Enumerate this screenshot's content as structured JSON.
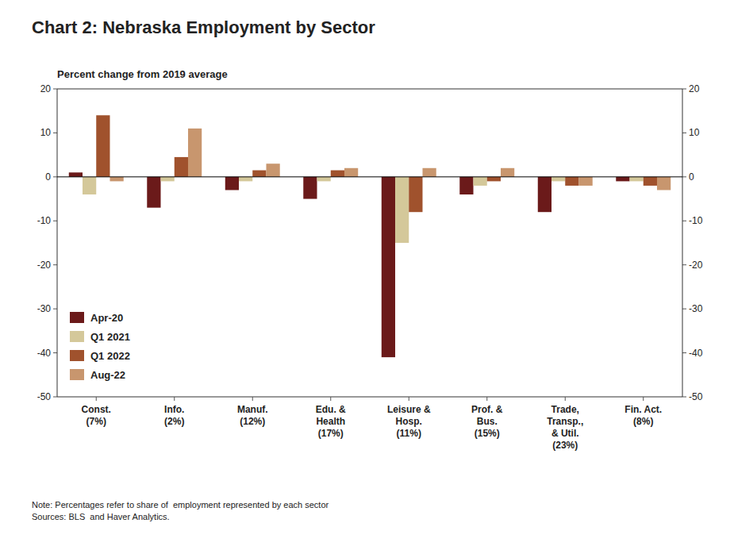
{
  "chart_data": {
    "type": "bar",
    "title": "Chart 2: Nebraska Employment by Sector",
    "ylabel": "Percent change from 2019 average",
    "note": "Note: Percentages refer to share of  employment represented by each sector\nSources: BLS  and Haver Analytics.",
    "categories": [
      "Const.\n(7%)",
      "Info.\n(2%)",
      "Manuf.\n(12%)",
      "Edu. &\nHealth\n(17%)",
      "Leisure &\nHosp.\n(11%)",
      "Prof. &\nBus.\n(15%)",
      "Trade,\nTransp.,\n& Util.\n(23%)",
      "Fin. Act.\n(8%)"
    ],
    "series": [
      {
        "name": "Apr-20",
        "color": "#6B1A1A",
        "values": [
          1.0,
          -7.0,
          -3.0,
          -5.0,
          -41.0,
          -4.0,
          -8.0,
          -1.0
        ]
      },
      {
        "name": "Q1 2021",
        "color": "#D4C89A",
        "values": [
          -4.0,
          -1.0,
          -1.0,
          -1.0,
          -15.0,
          -2.0,
          -1.0,
          -1.0
        ]
      },
      {
        "name": "Q1 2022",
        "color": "#A0522D",
        "values": [
          14.0,
          4.5,
          1.5,
          1.5,
          -8.0,
          -1.0,
          -2.0,
          -2.0
        ]
      },
      {
        "name": "Aug-22",
        "color": "#C8966E",
        "values": [
          -1.0,
          11.0,
          3.0,
          2.0,
          2.0,
          2.0,
          -2.0,
          -3.0
        ]
      }
    ],
    "ylim": [
      -50,
      20
    ],
    "yticks": [
      -50,
      -40,
      -30,
      -20,
      -10,
      0,
      10,
      20
    ],
    "grid": false,
    "legend": "lower left"
  }
}
